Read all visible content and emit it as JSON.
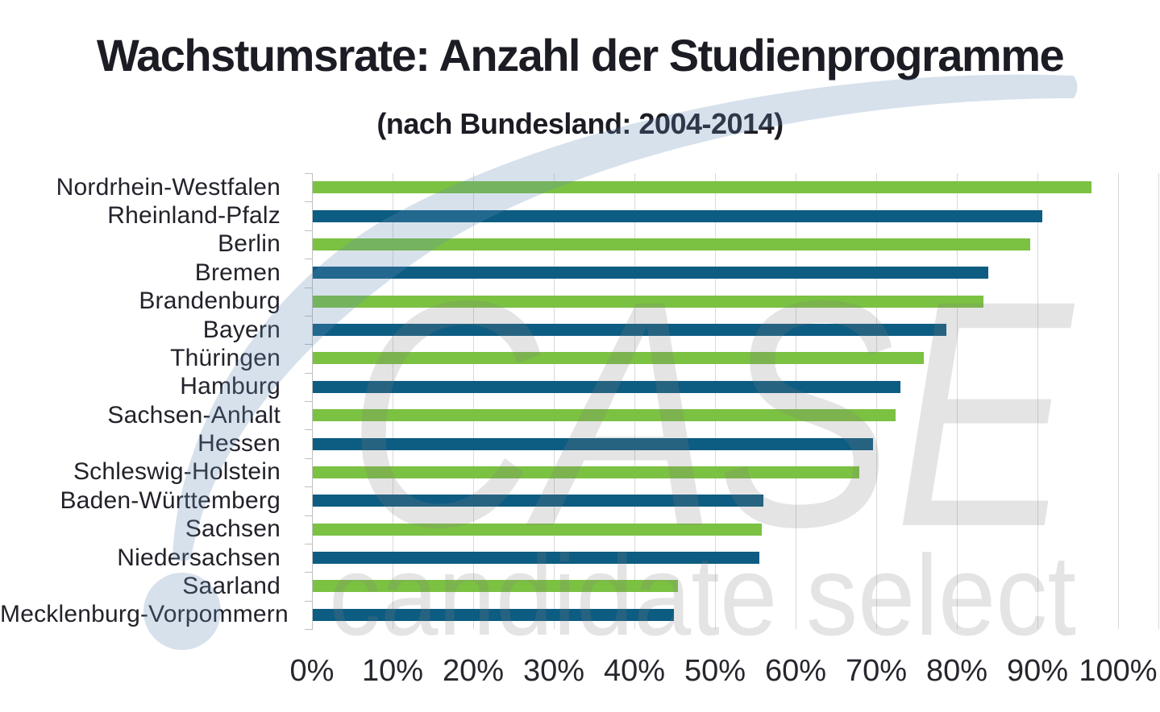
{
  "header": {
    "title": "Wachstumsrate: Anzahl der Studienprogramme",
    "subtitle": "(nach Bundesland: 2004-2014)"
  },
  "watermark": {
    "primary": "CASE",
    "secondary": "candidate select",
    "swoosh_color": "#d9e3ed",
    "text_color": "#e3e3e3"
  },
  "chart_data": {
    "type": "bar",
    "orientation": "horizontal",
    "title": "Wachstumsrate: Anzahl der Studienprogramme",
    "subtitle": "(nach Bundesland: 2004-2014)",
    "xlabel": "",
    "ylabel": "",
    "xlim": [
      0,
      100
    ],
    "grid": "vertical-only",
    "legend": "none",
    "value_unit": "percent",
    "palette": {
      "green": "#7bc142",
      "blue": "#0d5c82"
    },
    "x_ticks": [
      0,
      10,
      20,
      30,
      40,
      50,
      60,
      70,
      80,
      90,
      100
    ],
    "x_tick_labels": [
      "0%",
      "10%",
      "20%",
      "30%",
      "40%",
      "50%",
      "60%",
      "70%",
      "80%",
      "90%",
      "100%"
    ],
    "bars": [
      {
        "label": "Nordrhein-Westfalen",
        "value": 96.6,
        "color": "green"
      },
      {
        "label": "Rheinland-Pfalz",
        "value": 90.5,
        "color": "blue"
      },
      {
        "label": "Berlin",
        "value": 89.0,
        "color": "green"
      },
      {
        "label": "Bremen",
        "value": 83.8,
        "color": "blue"
      },
      {
        "label": "Brandenburg",
        "value": 83.2,
        "color": "green"
      },
      {
        "label": "Bayern",
        "value": 78.6,
        "color": "blue"
      },
      {
        "label": "Thüringen",
        "value": 75.8,
        "color": "green"
      },
      {
        "label": "Hamburg",
        "value": 72.9,
        "color": "blue"
      },
      {
        "label": "Sachsen-Anhalt",
        "value": 72.3,
        "color": "green"
      },
      {
        "label": "Hessen",
        "value": 69.5,
        "color": "blue"
      },
      {
        "label": "Schleswig-Holstein",
        "value": 67.8,
        "color": "green"
      },
      {
        "label": "Baden-Württemberg",
        "value": 55.9,
        "color": "blue"
      },
      {
        "label": "Sachsen",
        "value": 55.7,
        "color": "green"
      },
      {
        "label": "Niedersachsen",
        "value": 55.4,
        "color": "blue"
      },
      {
        "label": "Saarland",
        "value": 45.3,
        "color": "green"
      },
      {
        "label": "Mecklenburg-Vorpommern",
        "value": 44.8,
        "color": "blue"
      }
    ]
  }
}
